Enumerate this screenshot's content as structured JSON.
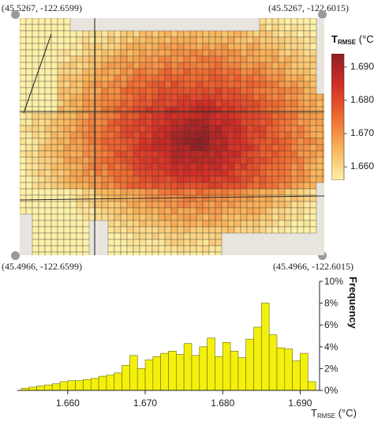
{
  "map": {
    "corners": {
      "top_left": "(45.5267, -122.6599)",
      "top_right": "(45.5267, -122.6015)",
      "bottom_left": "(45.4966, -122.6599)",
      "bottom_right": "(45.4966, -122.6015)"
    },
    "colorbar": {
      "title_main": "T",
      "title_sub": "RMSE",
      "title_unit": "(°C)",
      "ticks": [
        "1.690",
        "1.680",
        "1.670",
        "1.660"
      ],
      "tick_values": [
        1.69,
        1.68,
        1.67,
        1.66
      ],
      "range": [
        1.656,
        1.694
      ],
      "colors": [
        "#fdf0a8",
        "#f8b45a",
        "#ef6a30",
        "#d42e26",
        "#8c1f24"
      ]
    }
  },
  "chart_data": {
    "type": "bar",
    "title": "",
    "xlabel_main": "T",
    "xlabel_sub": "RMSE",
    "xlabel_unit": "(°C)",
    "ylabel": "Frequency",
    "xlim": [
      1.6535,
      1.6925
    ],
    "ylim": [
      0,
      10
    ],
    "bar_color": "#f4f00e",
    "x_ticks": [
      "1.660",
      "1.670",
      "1.680",
      "1.690"
    ],
    "x_tick_values": [
      1.66,
      1.67,
      1.68,
      1.69
    ],
    "y_ticks": [
      "0%",
      "2%",
      "4%",
      "6%",
      "8%",
      "10%"
    ],
    "y_tick_values": [
      0,
      2,
      4,
      6,
      8,
      10
    ],
    "bin_width": 0.001,
    "bin_starts": [
      1.654,
      1.655,
      1.656,
      1.657,
      1.658,
      1.659,
      1.66,
      1.661,
      1.662,
      1.663,
      1.664,
      1.665,
      1.666,
      1.667,
      1.668,
      1.669,
      1.67,
      1.671,
      1.672,
      1.673,
      1.674,
      1.675,
      1.676,
      1.677,
      1.678,
      1.679,
      1.68,
      1.681,
      1.682,
      1.683,
      1.684,
      1.685,
      1.686,
      1.687,
      1.688,
      1.689,
      1.69,
      1.691
    ],
    "values": [
      0.2,
      0.3,
      0.4,
      0.5,
      0.6,
      0.8,
      0.9,
      0.9,
      1.0,
      1.1,
      1.3,
      1.4,
      1.6,
      2.3,
      3.2,
      2.0,
      2.8,
      3.1,
      3.4,
      3.6,
      3.3,
      4.3,
      3.2,
      4.0,
      4.8,
      3.1,
      4.4,
      3.6,
      3.0,
      4.7,
      5.8,
      8.0,
      5.1,
      3.9,
      3.8,
      2.7,
      3.4,
      0.8
    ]
  }
}
